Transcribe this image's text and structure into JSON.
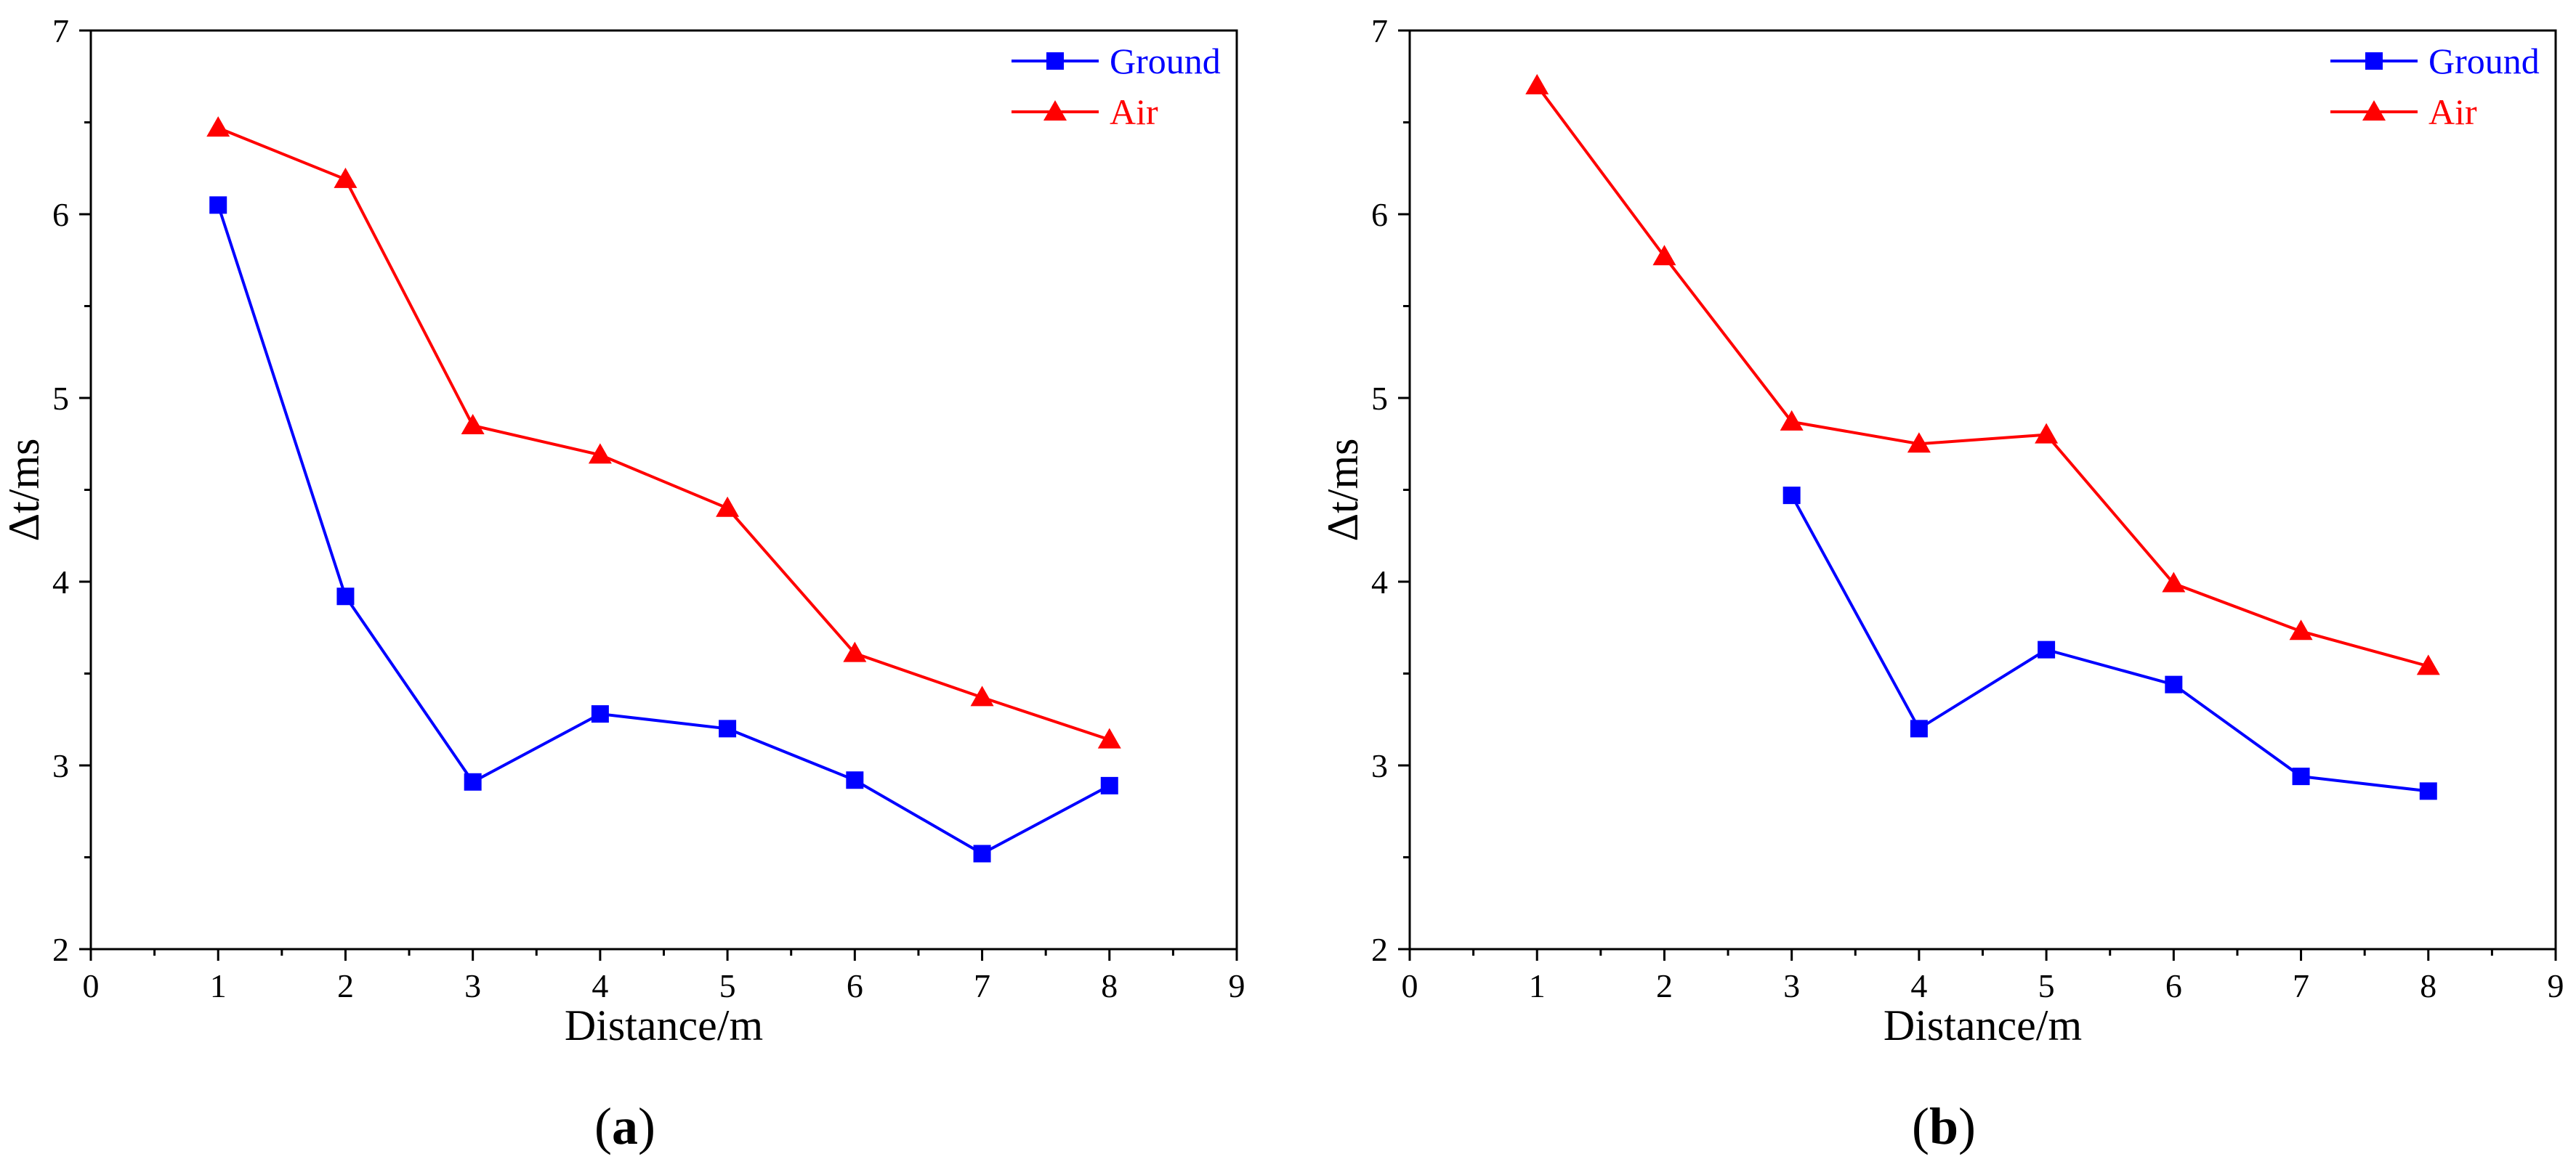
{
  "chart_data": [
    {
      "type": "line",
      "panel_label": "a",
      "xlabel": "Distance/m",
      "ylabel": "Δt/ms",
      "xlim": [
        0,
        9
      ],
      "ylim": [
        2,
        7
      ],
      "xticks": [
        "0",
        "1",
        "2",
        "3",
        "4",
        "5",
        "6",
        "7",
        "8",
        "9"
      ],
      "yticks": [
        "2",
        "3",
        "4",
        "5",
        "6",
        "7"
      ],
      "grid": false,
      "legend_position": "top-right",
      "series": [
        {
          "name": "Ground",
          "color": "#0000ff",
          "marker": "square",
          "x": [
            1,
            2,
            3,
            4,
            5,
            6,
            7,
            8
          ],
          "values": [
            6.05,
            3.92,
            2.91,
            3.28,
            3.2,
            2.92,
            2.52,
            2.89
          ]
        },
        {
          "name": "Air",
          "color": "#ff0000",
          "marker": "triangle",
          "x": [
            1,
            2,
            3,
            4,
            5,
            6,
            7,
            8
          ],
          "values": [
            6.47,
            6.19,
            4.85,
            4.69,
            4.4,
            3.61,
            3.37,
            3.14
          ]
        }
      ]
    },
    {
      "type": "line",
      "panel_label": "b",
      "xlabel": "Distance/m",
      "ylabel": "Δt/ms",
      "xlim": [
        0,
        9
      ],
      "ylim": [
        2,
        7
      ],
      "xticks": [
        "0",
        "1",
        "2",
        "3",
        "4",
        "5",
        "6",
        "7",
        "8",
        "9"
      ],
      "yticks": [
        "2",
        "3",
        "4",
        "5",
        "6",
        "7"
      ],
      "grid": false,
      "legend_position": "top-right",
      "series": [
        {
          "name": "Ground",
          "color": "#0000ff",
          "marker": "square",
          "x": [
            3,
            4,
            5,
            6,
            7,
            8
          ],
          "values": [
            4.47,
            3.2,
            3.63,
            3.44,
            2.94,
            2.86
          ]
        },
        {
          "name": "Air",
          "color": "#ff0000",
          "marker": "triangle",
          "x": [
            1,
            2,
            3,
            4,
            5,
            6,
            7,
            8
          ],
          "values": [
            6.7,
            5.77,
            4.87,
            4.75,
            4.8,
            3.99,
            3.73,
            3.54
          ]
        }
      ]
    }
  ]
}
